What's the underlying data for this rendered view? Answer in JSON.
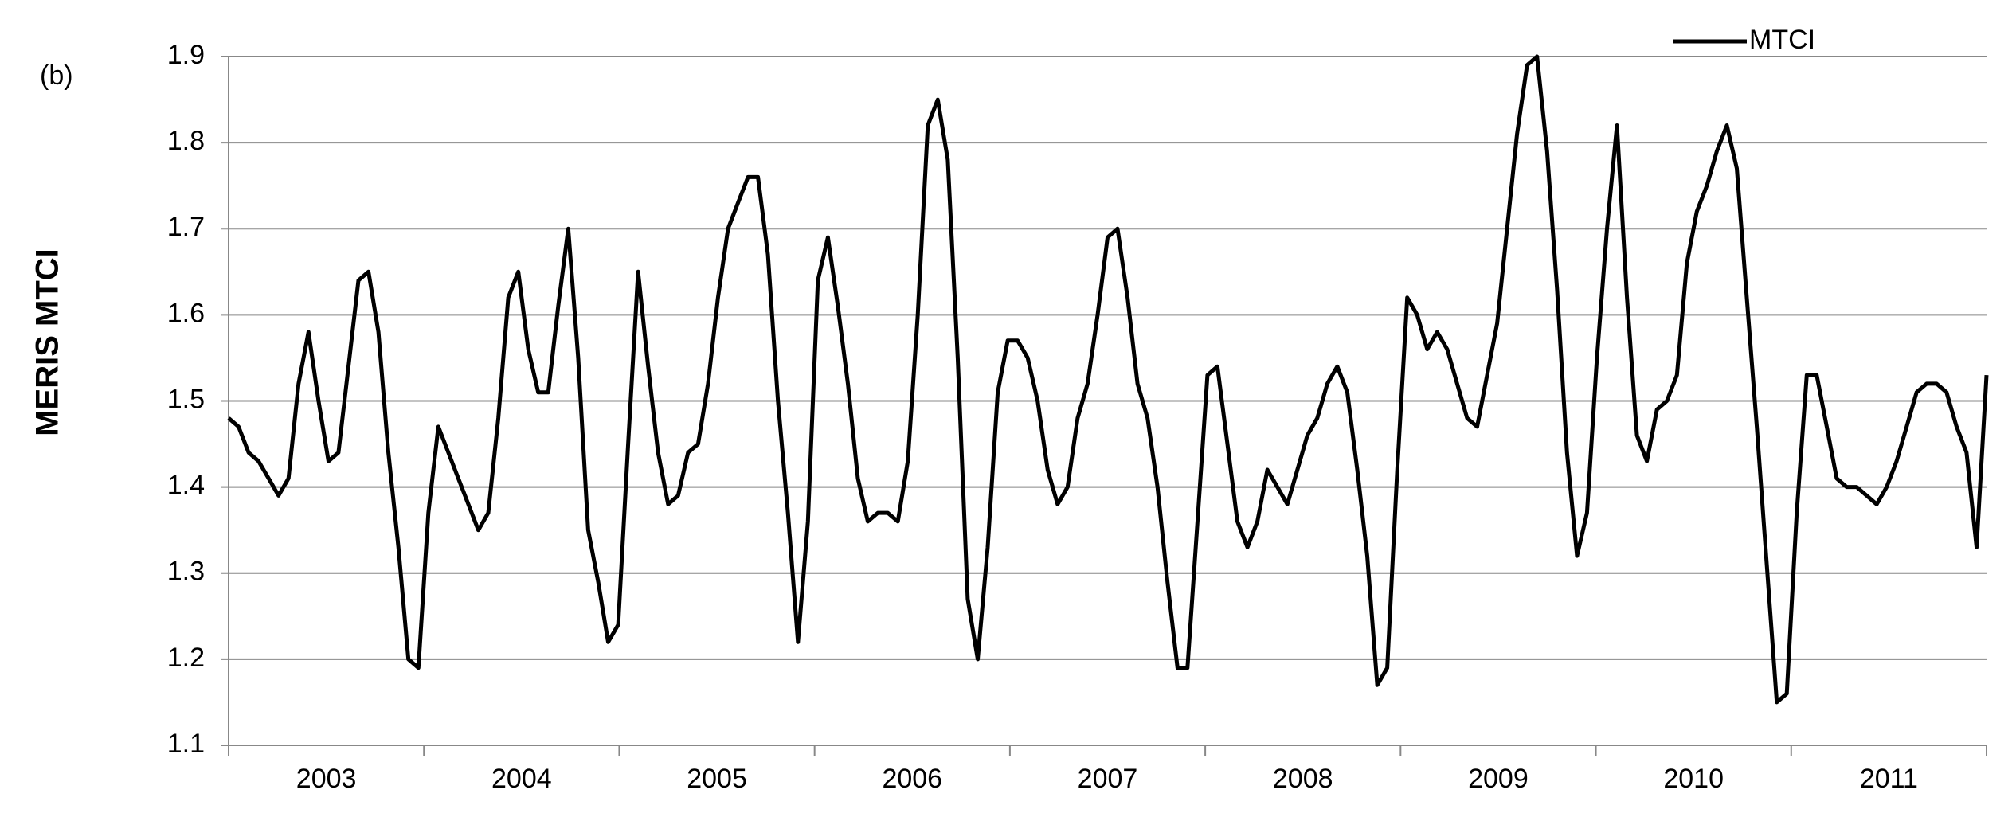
{
  "chart_data": {
    "type": "line",
    "panel_label": "(b)",
    "ylabel": "MERIS MTCI",
    "year_labels": [
      "2003",
      "2004",
      "2005",
      "2006",
      "2007",
      "2008",
      "2009",
      "2010",
      "2011"
    ],
    "ylim": [
      1.1,
      1.9
    ],
    "yticks": [
      1.1,
      1.2,
      1.3,
      1.4,
      1.5,
      1.6,
      1.7,
      1.8,
      1.9
    ],
    "grid": true,
    "legend": "top-right",
    "series": [
      {
        "name": "MTCI",
        "color": "#000000",
        "values": [
          1.48,
          1.47,
          1.44,
          1.43,
          1.41,
          1.39,
          1.41,
          1.52,
          1.58,
          1.5,
          1.43,
          1.44,
          1.54,
          1.64,
          1.65,
          1.58,
          1.44,
          1.33,
          1.2,
          1.19,
          1.37,
          1.47,
          1.44,
          1.41,
          1.38,
          1.35,
          1.37,
          1.48,
          1.62,
          1.65,
          1.56,
          1.51,
          1.51,
          1.61,
          1.7,
          1.55,
          1.35,
          1.29,
          1.22,
          1.24,
          1.45,
          1.65,
          1.54,
          1.44,
          1.38,
          1.39,
          1.44,
          1.45,
          1.52,
          1.62,
          1.7,
          1.73,
          1.76,
          1.76,
          1.67,
          1.5,
          1.37,
          1.22,
          1.36,
          1.64,
          1.69,
          1.61,
          1.52,
          1.41,
          1.36,
          1.37,
          1.37,
          1.36,
          1.43,
          1.6,
          1.82,
          1.85,
          1.78,
          1.55,
          1.27,
          1.2,
          1.33,
          1.51,
          1.57,
          1.57,
          1.55,
          1.5,
          1.42,
          1.38,
          1.4,
          1.48,
          1.52,
          1.6,
          1.69,
          1.7,
          1.62,
          1.52,
          1.48,
          1.4,
          1.29,
          1.19,
          1.19,
          1.36,
          1.53,
          1.54,
          1.45,
          1.36,
          1.33,
          1.36,
          1.42,
          1.4,
          1.38,
          1.42,
          1.46,
          1.48,
          1.52,
          1.54,
          1.51,
          1.42,
          1.32,
          1.17,
          1.19,
          1.42,
          1.62,
          1.6,
          1.56,
          1.58,
          1.56,
          1.52,
          1.48,
          1.47,
          1.53,
          1.59,
          1.7,
          1.81,
          1.89,
          1.9,
          1.79,
          1.63,
          1.44,
          1.32,
          1.37,
          1.55,
          1.7,
          1.82,
          1.62,
          1.46,
          1.43,
          1.49,
          1.5,
          1.53,
          1.66,
          1.72,
          1.75,
          1.79,
          1.82,
          1.77,
          1.62,
          1.47,
          1.31,
          1.15,
          1.16,
          1.37,
          1.53,
          1.53,
          1.47,
          1.41,
          1.4,
          1.4,
          1.39,
          1.38,
          1.4,
          1.43,
          1.47,
          1.51,
          1.52,
          1.52,
          1.51,
          1.47,
          1.44,
          1.33,
          1.53
        ]
      }
    ]
  }
}
